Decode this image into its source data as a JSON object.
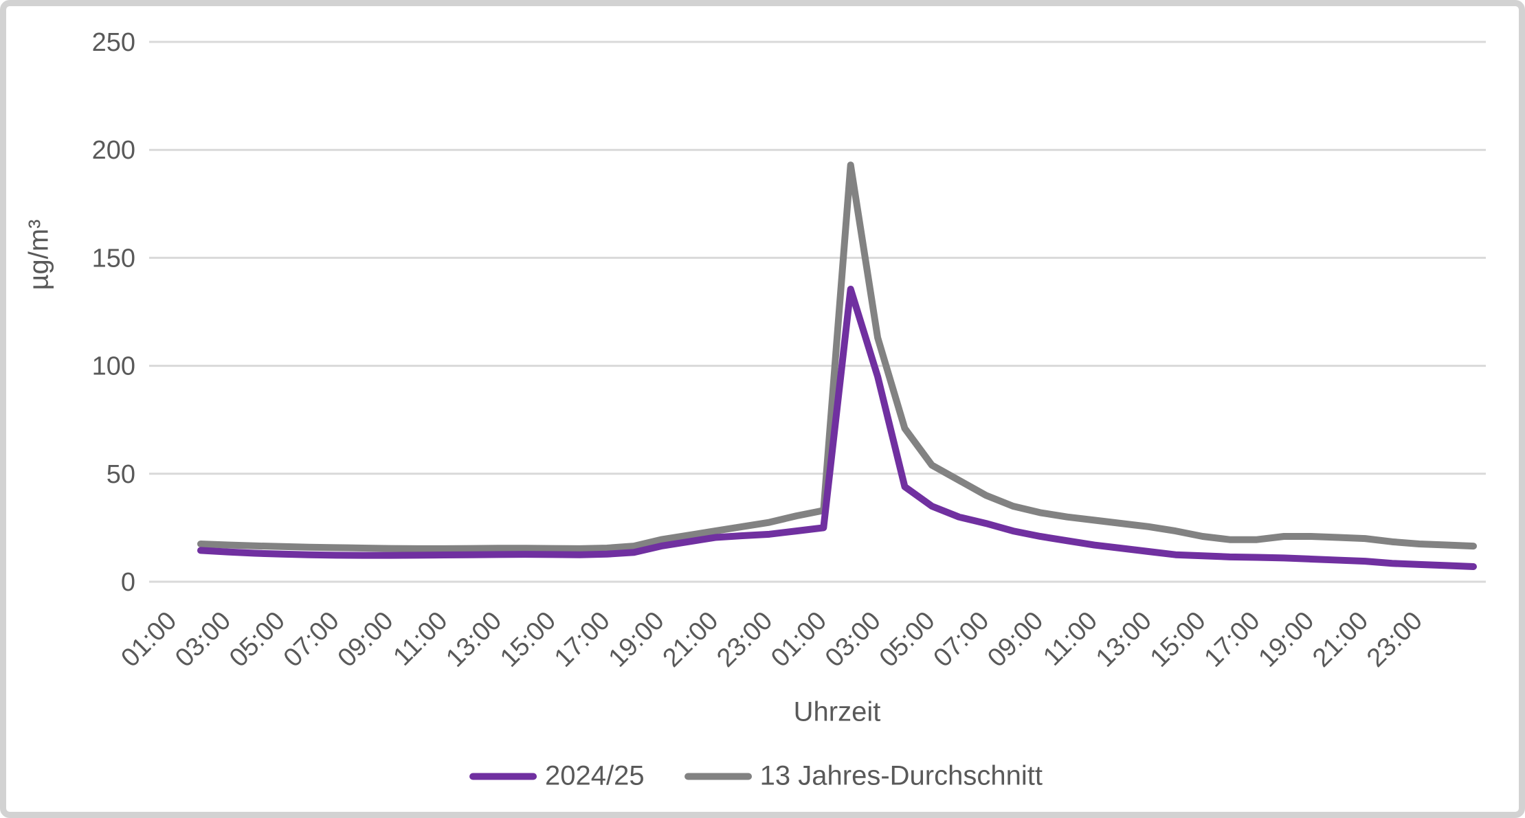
{
  "chart_data": {
    "type": "line",
    "title": "",
    "xlabel": "Uhrzeit",
    "ylabel": "µg/m³",
    "ylim": [
      0,
      250
    ],
    "yticks": [
      0,
      50,
      100,
      150,
      200,
      250
    ],
    "grid": "horizontal",
    "legend_position": "bottom",
    "x_tick_interval": 2,
    "x": [
      "01:00",
      "02:00",
      "03:00",
      "04:00",
      "05:00",
      "06:00",
      "07:00",
      "08:00",
      "09:00",
      "10:00",
      "11:00",
      "12:00",
      "13:00",
      "14:00",
      "15:00",
      "16:00",
      "17:00",
      "18:00",
      "19:00",
      "20:00",
      "21:00",
      "22:00",
      "23:00",
      "00:00",
      "01:00",
      "02:00",
      "03:00",
      "04:00",
      "05:00",
      "06:00",
      "07:00",
      "08:00",
      "09:00",
      "10:00",
      "11:00",
      "12:00",
      "13:00",
      "14:00",
      "15:00",
      "16:00",
      "17:00",
      "18:00",
      "19:00",
      "20:00",
      "21:00",
      "22:00",
      "23:00",
      "00:00"
    ],
    "series": [
      {
        "name": "2024/25",
        "color": "#7030A0",
        "values": [
          14.5,
          13.8,
          13.2,
          12.8,
          12.5,
          12.3,
          12.2,
          12.2,
          12.3,
          12.4,
          12.5,
          12.6,
          12.7,
          12.6,
          12.5,
          12.8,
          13.6,
          16.5,
          18.5,
          20.5,
          21.3,
          22,
          23.5,
          25,
          135.5,
          95,
          44,
          35,
          30,
          27,
          23.5,
          21,
          19,
          17,
          15.5,
          14,
          12.5,
          12,
          11.5,
          11.3,
          11,
          10.5,
          10,
          9.5,
          8.5,
          8,
          7.5,
          7
        ]
      },
      {
        "name": "13 Jahres-Durchschnitt",
        "color": "#828282",
        "values": [
          17.5,
          17,
          16.6,
          16.3,
          16,
          15.8,
          15.6,
          15.4,
          15.3,
          15.3,
          15.4,
          15.5,
          15.5,
          15.4,
          15.3,
          15.6,
          16.5,
          19.5,
          21.5,
          23.5,
          25.5,
          27.5,
          30.5,
          33,
          193,
          113,
          71,
          54,
          47,
          40,
          35,
          32,
          30,
          28.5,
          27,
          25.5,
          23.5,
          21,
          19.5,
          19.5,
          21,
          21,
          20.5,
          20,
          18.5,
          17.5,
          17,
          16.5
        ]
      }
    ]
  },
  "style": {
    "gridline_color": "#D9D9D9",
    "text_color": "#595959",
    "background": "#FFFFFF"
  }
}
